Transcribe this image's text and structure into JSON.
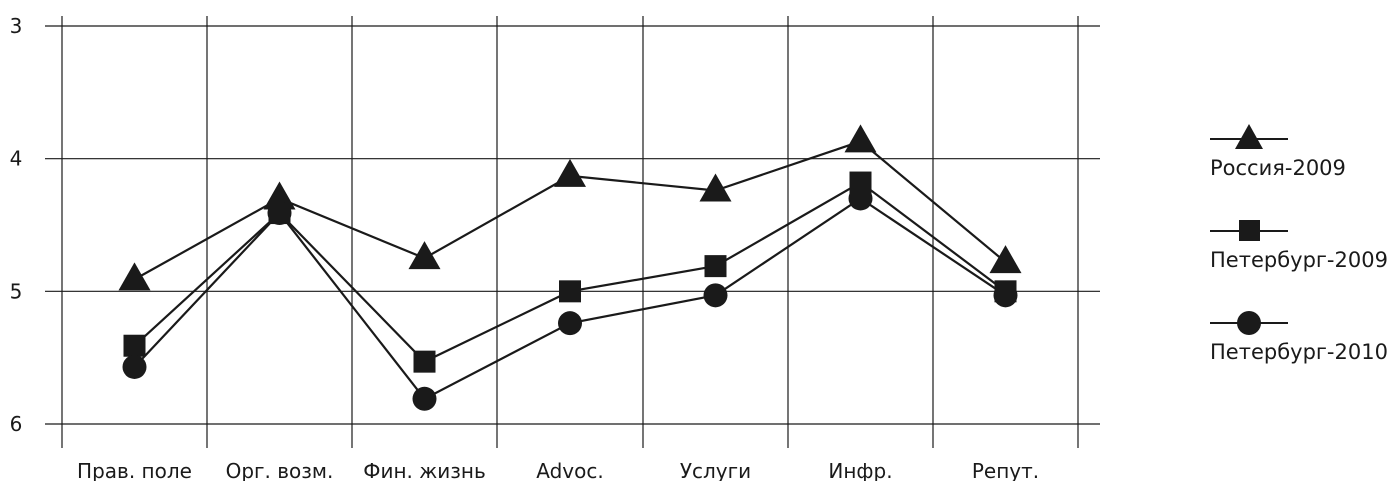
{
  "chart_data": {
    "type": "line",
    "categories": [
      "Прав. поле",
      "Орг. возм.",
      "Фин. жизнь",
      "Advoc.",
      "Услуги",
      "Инфр.",
      "Репут."
    ],
    "y_ticks": [
      "3",
      "4",
      "5",
      "6"
    ],
    "ylim": [
      6,
      3
    ],
    "y_inverted": true,
    "grid": true,
    "legend_position": "right",
    "series": [
      {
        "name": "Россия-2009",
        "marker": "triangle",
        "values": [
          4.91,
          4.3,
          4.75,
          4.13,
          4.24,
          3.87,
          4.78
        ]
      },
      {
        "name": "Петербург-2009",
        "marker": "square",
        "values": [
          5.41,
          4.41,
          5.53,
          5.0,
          4.81,
          4.18,
          5.0
        ]
      },
      {
        "name": "Петербург-2010",
        "marker": "circle",
        "values": [
          5.57,
          4.41,
          5.81,
          5.24,
          5.03,
          4.3,
          5.03
        ]
      }
    ],
    "colors": {
      "line": "#1a1a1a",
      "marker": "#1a1a1a",
      "grid": "#1a1a1a"
    }
  }
}
